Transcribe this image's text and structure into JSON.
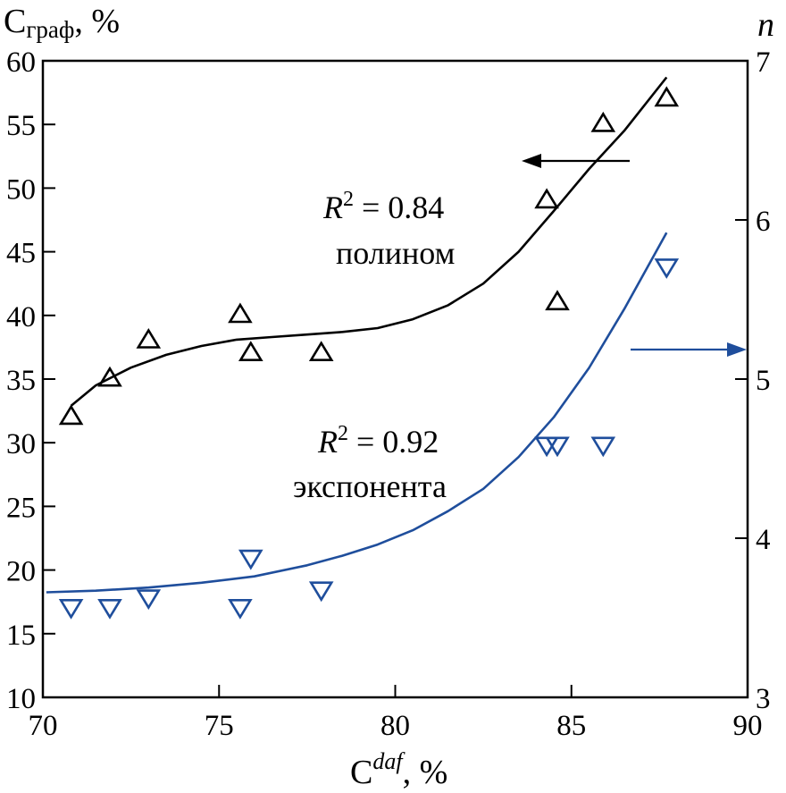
{
  "chart_data": {
    "type": "scatter",
    "x_label": {
      "main": "C",
      "sup": "daf",
      "suffix": ", %"
    },
    "y_left_label": {
      "main": "C",
      "sub": "граф",
      "suffix": ", %"
    },
    "y_right_label": "n",
    "xlim": [
      70,
      90
    ],
    "ylim_left": [
      10,
      60
    ],
    "ylim_right": [
      3,
      7
    ],
    "x_ticks": [
      "70",
      "75",
      "80",
      "85",
      "90"
    ],
    "y_left_ticks": [
      "10",
      "15",
      "20",
      "25",
      "30",
      "35",
      "40",
      "45",
      "50",
      "55",
      "60"
    ],
    "y_right_ticks": [
      "3",
      "4",
      "5",
      "6",
      "7"
    ],
    "colors": {
      "graphite": "#000000",
      "n": "#1f4e9c"
    },
    "series": [
      {
        "name": "C_graph",
        "axis": "left",
        "marker": "triangle-up",
        "fit": "полином",
        "r2_label": "R",
        "r2_sup": "2",
        "r2_value": " = 0.84",
        "points": [
          [
            70.8,
            32
          ],
          [
            71.9,
            35
          ],
          [
            73.0,
            38
          ],
          [
            75.6,
            40
          ],
          [
            75.9,
            37
          ],
          [
            77.9,
            37
          ],
          [
            84.3,
            49
          ],
          [
            84.6,
            41
          ],
          [
            85.9,
            55
          ],
          [
            87.7,
            57
          ]
        ],
        "fit_curve": [
          [
            70.8,
            32.9
          ],
          [
            71.5,
            34.5
          ],
          [
            72.5,
            35.9
          ],
          [
            73.5,
            36.9
          ],
          [
            74.5,
            37.6
          ],
          [
            75.5,
            38.1
          ],
          [
            76.5,
            38.3
          ],
          [
            77.5,
            38.5
          ],
          [
            78.5,
            38.7
          ],
          [
            79.5,
            39.0
          ],
          [
            80.5,
            39.7
          ],
          [
            81.5,
            40.8
          ],
          [
            82.5,
            42.5
          ],
          [
            83.5,
            45.0
          ],
          [
            84.5,
            48.2
          ],
          [
            85.5,
            51.5
          ],
          [
            86.5,
            54.5
          ],
          [
            87.7,
            58.7
          ]
        ]
      },
      {
        "name": "n",
        "axis": "right",
        "marker": "triangle-down",
        "fit": "экспонента",
        "r2_label": "R",
        "r2_sup": "2",
        "r2_value": " = 0.92",
        "points": [
          [
            70.8,
            3.57
          ],
          [
            71.9,
            3.57
          ],
          [
            73.0,
            3.63
          ],
          [
            75.6,
            3.57
          ],
          [
            75.9,
            3.88
          ],
          [
            77.9,
            3.68
          ],
          [
            84.3,
            4.59
          ],
          [
            84.6,
            4.59
          ],
          [
            85.9,
            4.59
          ],
          [
            87.7,
            5.71
          ]
        ],
        "fit_curve": [
          [
            70.1,
            3.66
          ],
          [
            71.5,
            3.67
          ],
          [
            73.0,
            3.69
          ],
          [
            74.5,
            3.72
          ],
          [
            76.0,
            3.76
          ],
          [
            77.5,
            3.83
          ],
          [
            78.5,
            3.89
          ],
          [
            79.5,
            3.96
          ],
          [
            80.5,
            4.05
          ],
          [
            81.5,
            4.17
          ],
          [
            82.5,
            4.31
          ],
          [
            83.5,
            4.51
          ],
          [
            84.5,
            4.76
          ],
          [
            85.5,
            5.07
          ],
          [
            86.5,
            5.44
          ],
          [
            87.7,
            5.92
          ]
        ]
      }
    ],
    "annotations": [
      {
        "text": "полином",
        "target": "graphite"
      },
      {
        "text": "экспонента",
        "target": "n"
      }
    ]
  }
}
